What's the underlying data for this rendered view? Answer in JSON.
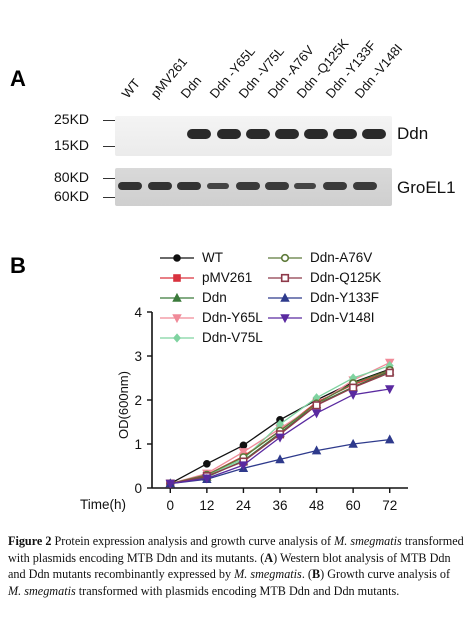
{
  "panel_a": {
    "letter": "A",
    "lanes": [
      "WT",
      "pMV261",
      "Ddn",
      "Ddn -Y65L",
      "Ddn -V75L",
      "Ddn -A76V",
      "Ddn -Q125K",
      "Ddn -Y133F",
      "Ddn -V148I"
    ],
    "markers_top": [
      "25KD",
      "15KD"
    ],
    "markers_bottom": [
      "80KD",
      "60KD"
    ],
    "band_label_top": "Ddn",
    "band_label_bottom": "GroEL1"
  },
  "panel_b": {
    "letter": "B"
  },
  "chart_data": {
    "type": "line",
    "title": "",
    "xlabel": "Time(h)",
    "ylabel": "OD(600nm)",
    "x": [
      0,
      12,
      24,
      36,
      48,
      60,
      72
    ],
    "xticks": [
      "0",
      "12",
      "24",
      "36",
      "48",
      "60",
      "72"
    ],
    "yticks": [
      "0",
      "1",
      "2",
      "3",
      "4"
    ],
    "ylim": [
      0,
      4
    ],
    "xlim": [
      -6,
      78
    ],
    "legend_placement": "top",
    "series": [
      {
        "name": "WT",
        "color": "#111111",
        "marker": "circle",
        "values": [
          0.1,
          0.55,
          0.97,
          1.55,
          2.0,
          2.4,
          2.7
        ]
      },
      {
        "name": "pMV261",
        "color": "#d9333f",
        "marker": "square",
        "values": [
          0.1,
          0.3,
          0.72,
          1.3,
          1.95,
          2.35,
          2.65
        ]
      },
      {
        "name": "Ddn",
        "color": "#3b7a3b",
        "marker": "triangle-up",
        "values": [
          0.1,
          0.25,
          0.62,
          1.25,
          1.9,
          2.3,
          2.65
        ]
      },
      {
        "name": "Ddn-Y65L",
        "color": "#f08a98",
        "marker": "triangle-down",
        "values": [
          0.1,
          0.33,
          0.82,
          1.35,
          1.9,
          2.45,
          2.85
        ]
      },
      {
        "name": "Ddn-V75L",
        "color": "#7fd3a0",
        "marker": "diamond",
        "values": [
          0.1,
          0.28,
          0.66,
          1.45,
          2.05,
          2.5,
          2.78
        ]
      },
      {
        "name": "Ddn-A76V",
        "color": "#5e7a3a",
        "marker": "circle-open",
        "values": [
          0.1,
          0.3,
          0.7,
          1.3,
          1.92,
          2.38,
          2.68
        ]
      },
      {
        "name": "Ddn-Q125K",
        "color": "#8e3a4a",
        "marker": "square-open",
        "values": [
          0.1,
          0.27,
          0.6,
          1.22,
          1.88,
          2.28,
          2.62
        ]
      },
      {
        "name": "Ddn-Y133F",
        "color": "#2e3a8c",
        "marker": "triangle-up",
        "values": [
          0.1,
          0.2,
          0.45,
          0.65,
          0.85,
          1.0,
          1.1
        ]
      },
      {
        "name": "Ddn-V148I",
        "color": "#5a2aa0",
        "marker": "triangle-down",
        "values": [
          0.1,
          0.22,
          0.52,
          1.15,
          1.7,
          2.12,
          2.25
        ]
      }
    ]
  },
  "caption": {
    "figure_label": "Figure 2",
    "text_1": " Protein expression analysis and growth curve analysis of ",
    "species_1": "M. smegmatis",
    "text_2": " transformed with plasmids encoding MTB Ddn and its mutants. (",
    "a_label": "A",
    "text_3": ") Western blot analysis of MTB Ddn and Ddn mutants recombinantly expressed by ",
    "species_2": "M. smegmatis",
    "text_4": ". (",
    "b_label": "B",
    "text_5": ") Growth curve analysis of ",
    "species_3": "M. smegmatis",
    "text_6": " transformed with plasmids encoding MTB Ddn and Ddn mutants."
  }
}
